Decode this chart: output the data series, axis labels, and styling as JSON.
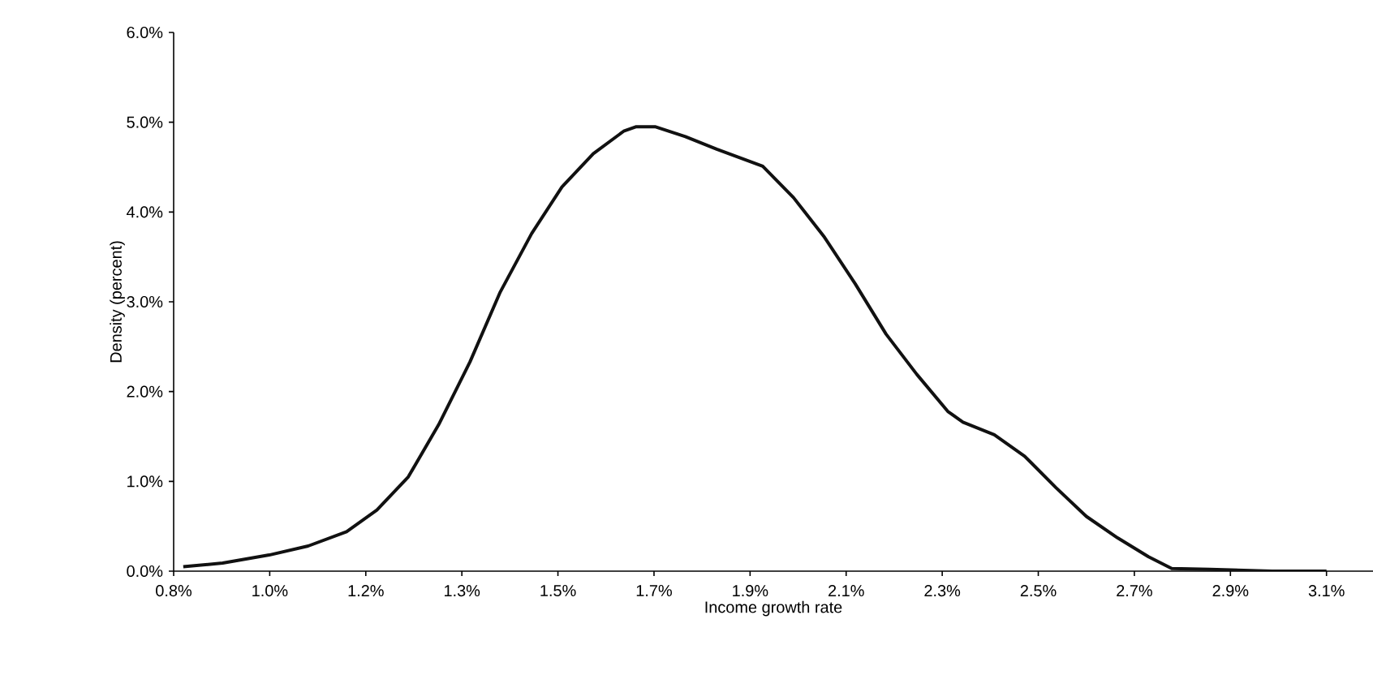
{
  "chart_data": {
    "type": "line",
    "xlabel": "Income growth rate",
    "ylabel": "Density (percent)",
    "color": "#111111",
    "marker": "none",
    "line_style": "solid",
    "grid": false,
    "x": [
      0.795,
      0.873,
      0.965,
      1.042,
      1.118,
      1.178,
      1.24,
      1.3,
      1.362,
      1.422,
      1.484,
      1.544,
      1.606,
      1.666,
      1.691,
      1.728,
      1.788,
      1.85,
      1.941,
      2.002,
      2.063,
      2.124,
      2.185,
      2.246,
      2.307,
      2.337,
      2.399,
      2.459,
      2.521,
      2.581,
      2.643,
      2.704,
      2.75,
      2.825,
      2.948,
      3.056
    ],
    "values": [
      0.05,
      0.09,
      0.18,
      0.28,
      0.44,
      0.68,
      1.05,
      1.63,
      2.33,
      3.11,
      3.76,
      4.28,
      4.65,
      4.9,
      4.95,
      4.95,
      4.84,
      4.7,
      4.51,
      4.16,
      3.72,
      3.2,
      2.64,
      2.19,
      1.78,
      1.66,
      1.52,
      1.28,
      0.93,
      0.61,
      0.37,
      0.16,
      0.03,
      0.02,
      0.0,
      0.0
    ],
    "xlim": [
      0.776,
      3.148
    ],
    "ylim": [
      0,
      6
    ],
    "xticks": [
      {
        "value": 0.776,
        "label": "0.8%"
      },
      {
        "value": 0.966,
        "label": "1.0%"
      },
      {
        "value": 1.156,
        "label": "1.2%"
      },
      {
        "value": 1.346,
        "label": "1.3%"
      },
      {
        "value": 1.536,
        "label": "1.5%"
      },
      {
        "value": 1.726,
        "label": "1.7%"
      },
      {
        "value": 1.916,
        "label": "1.9%"
      },
      {
        "value": 2.106,
        "label": "2.1%"
      },
      {
        "value": 2.296,
        "label": "2.3%"
      },
      {
        "value": 2.486,
        "label": "2.5%"
      },
      {
        "value": 2.676,
        "label": "2.7%"
      },
      {
        "value": 2.866,
        "label": "2.9%"
      },
      {
        "value": 3.056,
        "label": "3.1%"
      }
    ],
    "yticks": [
      {
        "value": 0,
        "label": "0.0%"
      },
      {
        "value": 1,
        "label": "1.0%"
      },
      {
        "value": 2,
        "label": "2.0%"
      },
      {
        "value": 3,
        "label": "3.0%"
      },
      {
        "value": 4,
        "label": "4.0%"
      },
      {
        "value": 5,
        "label": "5.0%"
      },
      {
        "value": 6,
        "label": "6.0%"
      }
    ]
  }
}
